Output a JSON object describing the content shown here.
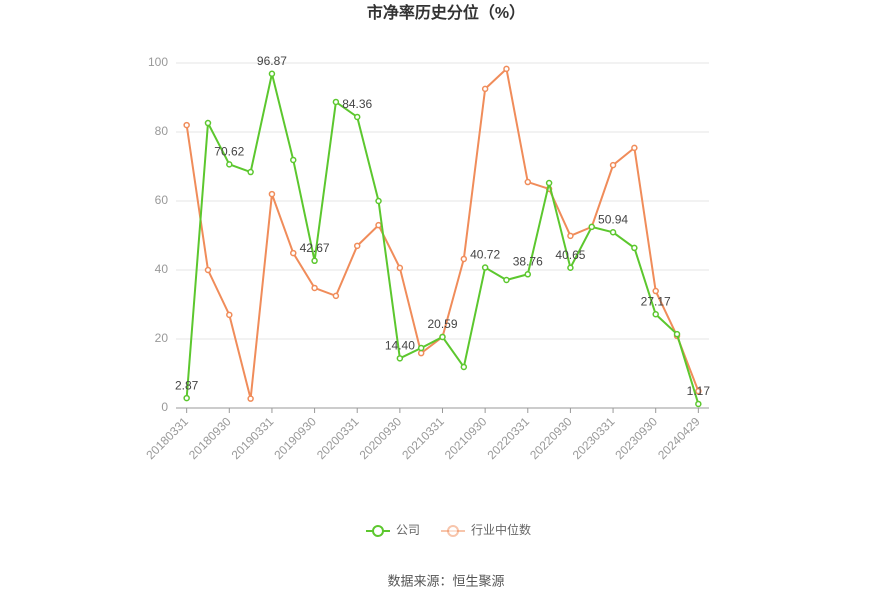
{
  "chart_data": {
    "type": "line",
    "title": "市净率历史分位（%）",
    "source": "数据来源：恒生聚源",
    "categories": [
      "20180331",
      null,
      "20180930",
      null,
      "20190331",
      null,
      "20190930",
      null,
      "20200331",
      null,
      "20200930",
      null,
      "20210331",
      null,
      "20210930",
      null,
      "20220331",
      null,
      "20220930",
      null,
      "20230331",
      null,
      "20230930",
      null,
      "20240429"
    ],
    "series": [
      {
        "name": "公司",
        "color": "#5cc72e",
        "values": [
          2.87,
          82.6,
          70.62,
          68.4,
          96.87,
          71.9,
          42.67,
          88.7,
          84.36,
          60,
          14.4,
          17.4,
          20.59,
          11.9,
          40.72,
          37.1,
          38.76,
          65.2,
          40.65,
          52.5,
          50.94,
          46.4,
          27.17,
          21.4,
          1.17
        ],
        "value_labels": [
          "2.87",
          null,
          "70.62",
          null,
          "96.87",
          null,
          "42.67",
          null,
          "84.36",
          null,
          "14.40",
          null,
          "20.59",
          null,
          "40.72",
          null,
          "38.76",
          null,
          "40.65",
          null,
          "50.94",
          null,
          "27.17",
          null,
          "1.17"
        ]
      },
      {
        "name": "行业中位数",
        "color": "#f08c5a",
        "values": [
          82,
          40,
          27,
          2.7,
          62,
          44.9,
          34.8,
          32.5,
          47,
          53,
          40.6,
          15.9,
          20.6,
          43.2,
          92.5,
          98.3,
          65.5,
          63.5,
          49.9,
          52.5,
          70.4,
          75.4,
          33.9,
          20.9,
          4.9
        ]
      }
    ],
    "ylim": [
      0,
      100
    ],
    "yticks": [
      0,
      20,
      40,
      60,
      80,
      100
    ],
    "grid": true,
    "legend": "bottom"
  }
}
